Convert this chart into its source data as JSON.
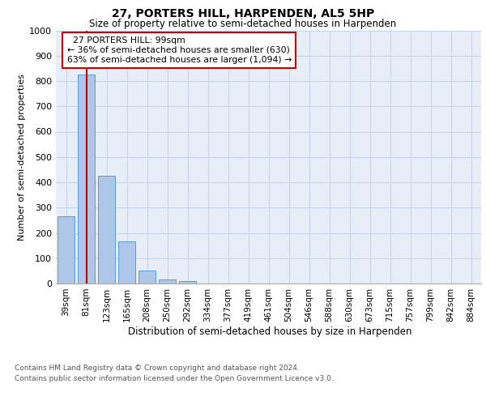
{
  "title": "27, PORTERS HILL, HARPENDEN, AL5 5HP",
  "subtitle": "Size of property relative to semi-detached houses in Harpenden",
  "xlabel": "Distribution of semi-detached houses by size in Harpenden",
  "ylabel": "Number of semi-detached properties",
  "categories": [
    "39sqm",
    "81sqm",
    "123sqm",
    "165sqm",
    "208sqm",
    "250sqm",
    "292sqm",
    "334sqm",
    "377sqm",
    "419sqm",
    "461sqm",
    "504sqm",
    "546sqm",
    "588sqm",
    "630sqm",
    "673sqm",
    "715sqm",
    "757sqm",
    "799sqm",
    "842sqm",
    "884sqm"
  ],
  "values": [
    265,
    825,
    425,
    168,
    50,
    15,
    10,
    0,
    0,
    0,
    0,
    0,
    0,
    0,
    0,
    0,
    0,
    0,
    0,
    0,
    0
  ],
  "bar_color": "#aec6e8",
  "bar_edge_color": "#5b9bd5",
  "grid_color": "#c8d4e8",
  "background_color": "#e8eef8",
  "property_line_x": 1,
  "property_size": "99sqm",
  "property_label": "27 PORTERS HILL",
  "pct_smaller": 36,
  "n_smaller": 630,
  "pct_larger": 63,
  "n_larger": 1094,
  "annotation_box_color": "#cc0000",
  "ylim": [
    0,
    1000
  ],
  "yticks": [
    0,
    100,
    200,
    300,
    400,
    500,
    600,
    700,
    800,
    900,
    1000
  ],
  "footer_line1": "Contains HM Land Registry data © Crown copyright and database right 2024.",
  "footer_line2": "Contains public sector information licensed under the Open Government Licence v3.0."
}
